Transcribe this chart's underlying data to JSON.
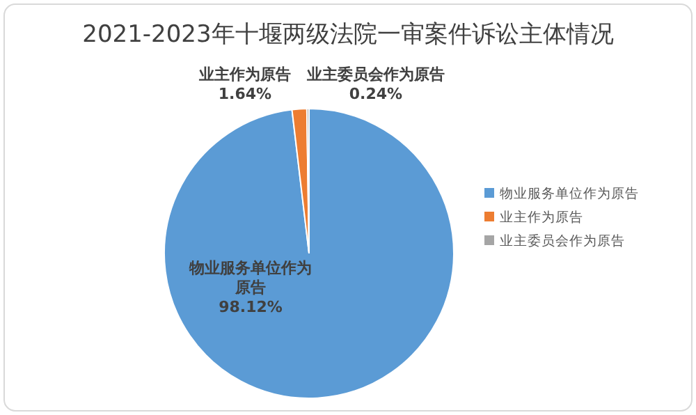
{
  "chart_data": {
    "type": "pie",
    "title": "2021-2023年十堰两级法院一审案件诉讼主体情况",
    "categories": [
      "物业服务单位作为原告",
      "业主作为原告",
      "业主委员会作为原告"
    ],
    "values": [
      98.12,
      1.64,
      0.24
    ],
    "colors": [
      "#5b9bd5",
      "#ed7d31",
      "#a5a5a5"
    ],
    "value_labels": [
      "98.12%",
      "1.64%",
      "0.24%"
    ],
    "legend": "right"
  }
}
